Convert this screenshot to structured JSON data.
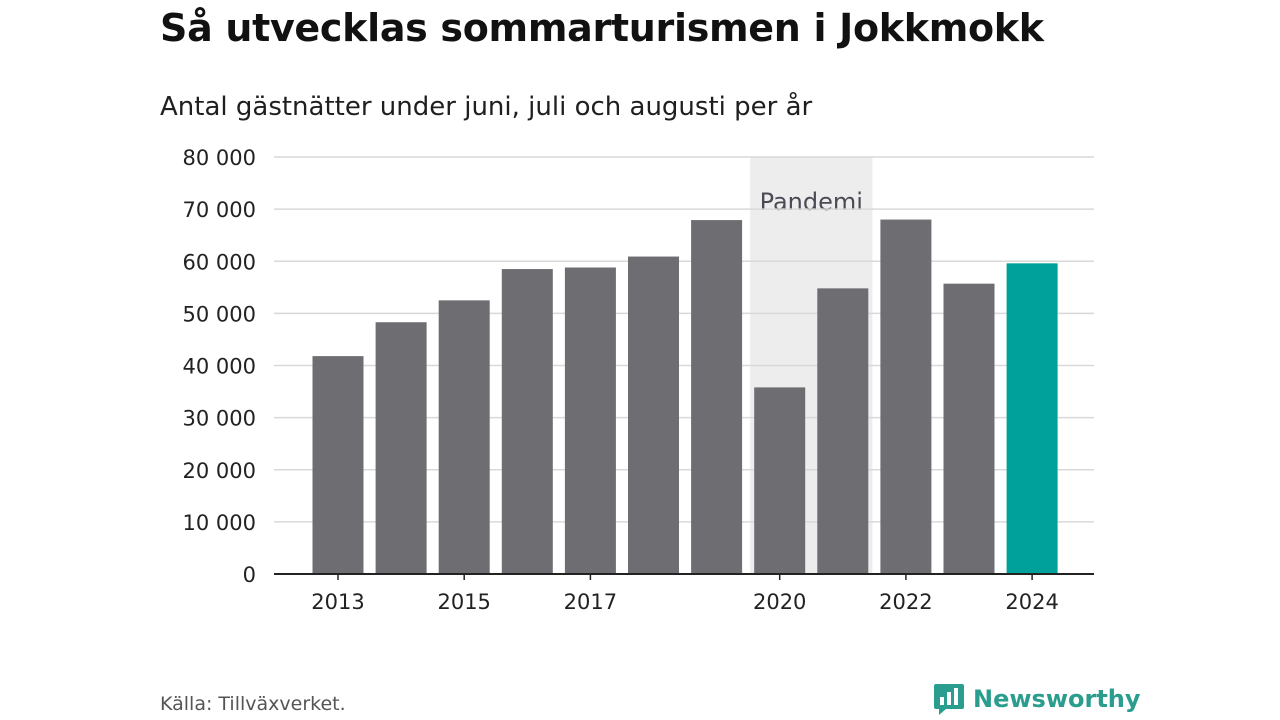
{
  "title": "Så utvecklas sommarturismen i Jokkmokk",
  "subtitle": "Antal gästnätter under juni, juli och augusti per år",
  "source": "Källa: Tillväxverket.",
  "brand": {
    "name": "Newsworthy",
    "icon": "newsworthy-logo-icon",
    "color": "#2a9d8f"
  },
  "chart_data": {
    "type": "bar",
    "categories": [
      "2013",
      "2014",
      "2015",
      "2016",
      "2017",
      "2018",
      "2019",
      "2020",
      "2021",
      "2022",
      "2023",
      "2024"
    ],
    "values": [
      41800,
      48300,
      52500,
      58500,
      58800,
      60900,
      67900,
      35800,
      54800,
      68000,
      55700,
      59600
    ],
    "ylim": [
      0,
      80000
    ],
    "yticks": [
      0,
      10000,
      20000,
      30000,
      40000,
      50000,
      60000,
      70000,
      80000
    ],
    "ytick_labels": [
      "0",
      "10 000",
      "20 000",
      "30 000",
      "40 000",
      "50 000",
      "60 000",
      "70 000",
      "80 000"
    ],
    "xtick_labels": [
      "2013",
      "2015",
      "2017",
      "2020",
      "2022",
      "2024"
    ],
    "grid": true,
    "bar_color": "#6e6d72",
    "highlight_color": "#00a19a",
    "highlight_category": "2024",
    "annotation": {
      "label": "Pandemi",
      "from": "2020",
      "to": "2021",
      "shade_color": "#ededed"
    }
  }
}
